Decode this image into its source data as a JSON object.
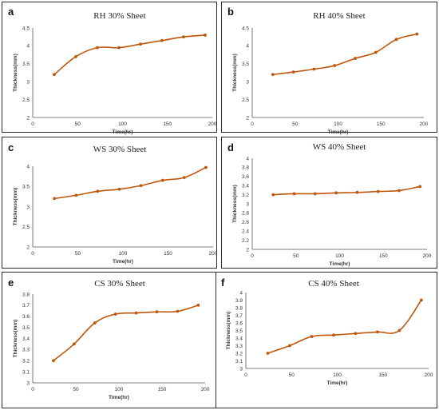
{
  "chart_data": [
    {
      "panel": "a",
      "type": "line",
      "title": "RH 30% Sheet",
      "xlabel": "Time(hr)",
      "ylabel": "Thickness(mm)",
      "xlim": [
        0,
        200
      ],
      "xticks": [
        0,
        50,
        100,
        150,
        200
      ],
      "ylim": [
        2,
        4.5
      ],
      "yticks": [
        2,
        2.5,
        3,
        3.5,
        4,
        4.5
      ],
      "series": [
        {
          "color": "#c0560a",
          "x": [
            24,
            48,
            72,
            96,
            120,
            144,
            168,
            192
          ],
          "y": [
            3.2,
            3.7,
            3.95,
            3.95,
            4.05,
            4.15,
            4.25,
            4.3
          ]
        }
      ]
    },
    {
      "panel": "b",
      "type": "line",
      "title": "RH 40% Sheet",
      "xlabel": "Time(hr)",
      "ylabel": "Thickness(mm)",
      "xlim": [
        0,
        200
      ],
      "xticks": [
        0,
        50,
        100,
        150,
        200
      ],
      "ylim": [
        2,
        4.5
      ],
      "yticks": [
        2,
        2.5,
        3,
        3.5,
        4,
        4.5
      ],
      "series": [
        {
          "color": "#c0560a",
          "x": [
            24,
            48,
            72,
            96,
            120,
            144,
            168,
            192
          ],
          "y": [
            3.2,
            3.27,
            3.35,
            3.45,
            3.65,
            3.82,
            4.18,
            4.33
          ]
        }
      ]
    },
    {
      "panel": "c",
      "type": "line",
      "title": "WS 30% Sheet",
      "xlabel": "Time(hr)",
      "ylabel": "Thickness(mm)",
      "xlim": [
        0,
        200
      ],
      "xticks": [
        0,
        50,
        100,
        150,
        200
      ],
      "ylim": [
        2,
        4
      ],
      "yticks": [
        2,
        2.5,
        3,
        3.5,
        4
      ],
      "series": [
        {
          "color": "#c0560a",
          "x": [
            24,
            48,
            72,
            96,
            120,
            144,
            168,
            192
          ],
          "y": [
            3.2,
            3.28,
            3.38,
            3.43,
            3.52,
            3.65,
            3.72,
            3.97
          ]
        }
      ]
    },
    {
      "panel": "d",
      "type": "line",
      "title": "WS 40% Sheet",
      "xlabel": "Time(hr)",
      "ylabel": "Thickness(mm)",
      "xlim": [
        0,
        200
      ],
      "xticks": [
        0,
        50,
        100,
        150,
        200
      ],
      "ylim": [
        2,
        4
      ],
      "yticks": [
        2,
        2.2,
        2.4,
        2.6,
        2.8,
        3,
        3.2,
        3.4,
        3.6,
        3.8,
        4
      ],
      "ytick_labels": [
        "2",
        "2.2",
        "2.4",
        "2.6",
        "2.8",
        "3",
        "3.2",
        "3.4",
        "3.6",
        "3.8",
        "4"
      ],
      "series": [
        {
          "color": "#c0560a",
          "x": [
            24,
            48,
            72,
            96,
            120,
            144,
            168,
            192
          ],
          "y": [
            3.2,
            3.22,
            3.22,
            3.24,
            3.25,
            3.27,
            3.29,
            3.38
          ]
        }
      ]
    },
    {
      "panel": "e",
      "type": "line",
      "title": "CS 30% Sheet",
      "xlabel": "Time(hr)",
      "ylabel": "Thickness(mm)",
      "xlim": [
        0,
        200
      ],
      "xticks": [
        0,
        50,
        100,
        150,
        200
      ],
      "ylim": [
        3,
        3.8
      ],
      "yticks": [
        3,
        3.1,
        3.2,
        3.3,
        3.4,
        3.5,
        3.6,
        3.7,
        3.8
      ],
      "ytick_labels": [
        "3",
        "3.1",
        "3.2",
        "3.3",
        "3.4",
        "3.5",
        "3.6",
        "3.7",
        "3.8"
      ],
      "series": [
        {
          "color": "#c0560a",
          "x": [
            24,
            48,
            72,
            96,
            120,
            144,
            168,
            192
          ],
          "y": [
            3.2,
            3.35,
            3.54,
            3.62,
            3.63,
            3.64,
            3.645,
            3.7
          ]
        }
      ]
    },
    {
      "panel": "f",
      "type": "line",
      "title": "CS 40% Sheet",
      "xlabel": "Time(hr)",
      "ylabel": "Thickness(mm)",
      "xlim": [
        0,
        200
      ],
      "xticks": [
        0,
        50,
        100,
        150,
        200
      ],
      "ylim": [
        3,
        4
      ],
      "yticks": [
        3,
        3.1,
        3.2,
        3.3,
        3.4,
        3.5,
        3.6,
        3.7,
        3.8,
        3.9,
        4
      ],
      "ytick_labels": [
        "3",
        "3.1",
        "3.2",
        "3.3",
        "3.4",
        "3.5",
        "3.6",
        "3.7",
        "3.8",
        "3.9",
        "4"
      ],
      "series": [
        {
          "color": "#c0560a",
          "x": [
            24,
            48,
            72,
            96,
            120,
            144,
            168,
            192
          ],
          "y": [
            3.2,
            3.3,
            3.42,
            3.44,
            3.46,
            3.48,
            3.5,
            3.9
          ]
        }
      ]
    }
  ]
}
